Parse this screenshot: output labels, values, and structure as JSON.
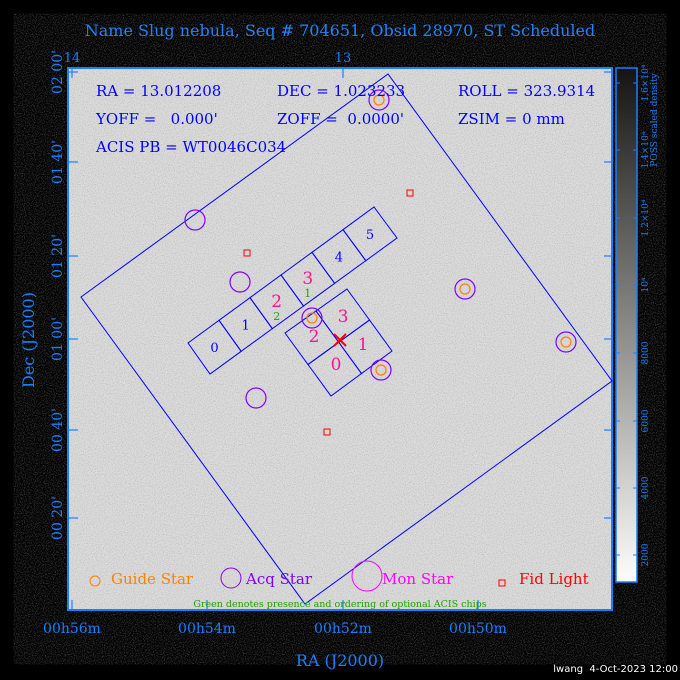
{
  "title": "Name Slug nebula, Seq # 704651, Obsid 28970, ST Scheduled",
  "info": {
    "ra": "RA = 13.012208",
    "dec": "DEC = 1.023233",
    "roll": "ROLL = 323.9314",
    "yoff": "YOFF =   0.000'",
    "zoff": "ZOFF =  0.0000'",
    "zsim": "ZSIM = 0 mm",
    "acis_pb": "ACIS PB = WT0046C034"
  },
  "axes": {
    "xlabel": "RA (J2000)",
    "ylabel": "Dec (J2000)",
    "x_ticks": [
      "00h56m",
      "00h54m",
      "00h52m",
      "00h50m"
    ],
    "top_ticks": [
      "14",
      "13"
    ],
    "y_ticks": [
      "02 00'",
      "01 40'",
      "01 20'",
      "01 00'",
      "00 40'",
      "00 20'"
    ]
  },
  "colorbar": {
    "label": "POSS scaled density",
    "ticks": [
      "2000",
      "4000",
      "6000",
      "8000",
      "10⁴",
      "1.2×10⁴",
      "1.4×10⁴",
      "1.6×10⁴"
    ]
  },
  "chips": {
    "acis_s": [
      "0",
      "1",
      "2",
      "3",
      "4",
      "5"
    ],
    "acis_i": [
      "0",
      "1",
      "2",
      "3"
    ],
    "optional": [
      "1",
      "2"
    ]
  },
  "legend": {
    "guide": "Guide Star",
    "acq": "Acq Star",
    "mon": "Mon Star",
    "fid": "Fid Light",
    "note": "Green denotes presence and ordering of optional ACIS chips"
  },
  "colors": {
    "axis": "#1a7fff",
    "field": "#0000ff",
    "guide": "#ff8000",
    "acq": "#8000ff",
    "mon": "#ff00ff",
    "fid": "#ff0000",
    "chip_label_i": "#ff1090",
    "optional": "#22a000"
  },
  "footer": "lwang  4-Oct-2023 12:00"
}
